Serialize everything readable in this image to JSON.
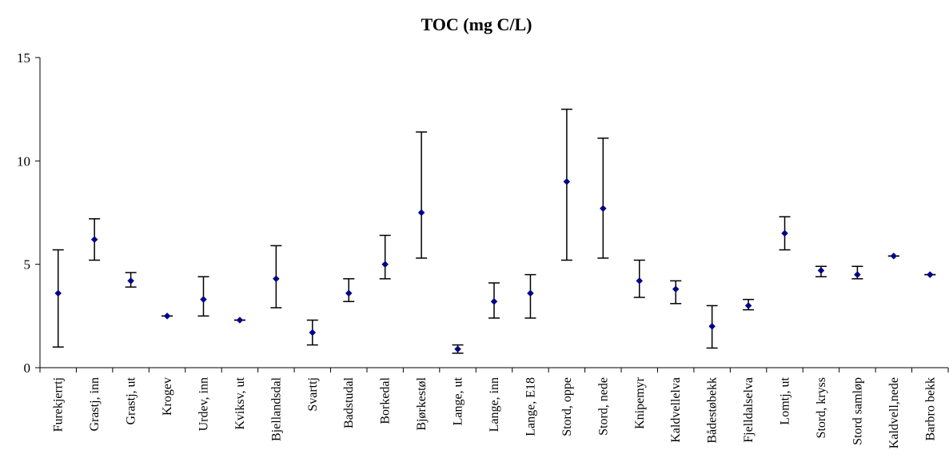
{
  "chart_data": {
    "type": "scatter",
    "title": "TOC (mg C/L)",
    "xlabel": "",
    "ylabel": "",
    "ylim": [
      0,
      15
    ],
    "yticks": [
      0,
      5,
      10,
      15
    ],
    "grid": false,
    "legend": "none",
    "marker_color": "#00008b",
    "errorbar_color": "#000000",
    "categories": [
      "Furekjerrtj",
      "Grastj, inn",
      "Grastj, ut",
      "Krogev",
      "Urdev, inn",
      "Kviksv, ut",
      "Bjellandsdal",
      "Svarttj",
      "Badstudal",
      "Borkedal",
      "Bjørkestøl",
      "Lange, ut",
      "Lange, inn",
      "Lange, E18",
      "Stord, oppe",
      "Stord, nede",
      "Knipemyr",
      "Kaldvellelva",
      "Bådestøbekk",
      "Fjelldalselva",
      "Lomtj, ut",
      "Stord, kryss",
      "Stord samløp",
      "Kaldvell,nede",
      "Barbro bekk"
    ],
    "series": [
      {
        "values": [
          3.6,
          6.2,
          4.2,
          2.5,
          3.3,
          2.3,
          4.3,
          1.7,
          3.6,
          5.0,
          7.5,
          0.9,
          3.2,
          3.6,
          9.0,
          7.7,
          4.2,
          3.8,
          2.0,
          3.0,
          6.5,
          4.7,
          4.5,
          5.4,
          4.5
        ],
        "min": [
          1.0,
          5.2,
          3.9,
          2.5,
          2.5,
          2.3,
          2.9,
          1.1,
          3.2,
          4.3,
          5.3,
          0.7,
          2.4,
          2.4,
          5.2,
          5.3,
          3.4,
          3.1,
          0.95,
          2.8,
          5.7,
          4.4,
          4.3,
          5.4,
          4.5
        ],
        "max": [
          5.7,
          7.2,
          4.6,
          2.5,
          4.4,
          2.3,
          5.9,
          2.3,
          4.3,
          6.4,
          11.4,
          1.1,
          4.1,
          4.5,
          12.5,
          11.1,
          5.2,
          4.2,
          3.0,
          3.3,
          7.3,
          4.9,
          4.9,
          5.4,
          4.5
        ]
      }
    ]
  }
}
